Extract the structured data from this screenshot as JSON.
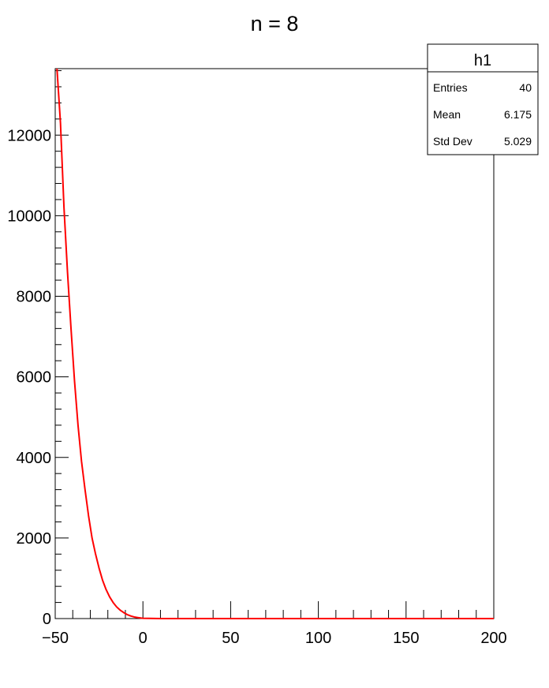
{
  "chart_data": {
    "type": "line",
    "title": "n = 8",
    "xlabel": "",
    "ylabel": "",
    "xlim": [
      -50,
      200
    ],
    "ylim": [
      0,
      13650
    ],
    "x_ticks": [
      -50,
      0,
      50,
      100,
      150,
      200
    ],
    "y_ticks": [
      0,
      2000,
      4000,
      6000,
      8000,
      10000,
      12000
    ],
    "series": [
      {
        "color": "#ff0000",
        "x": [
          -49,
          -47,
          -45,
          -43,
          -41,
          -39,
          -37,
          -35,
          -33,
          -31,
          -29,
          -27,
          -25,
          -23,
          -21,
          -19,
          -17,
          -15,
          -13,
          -11,
          -9,
          -7,
          -5,
          -3,
          -1,
          0,
          10,
          20,
          50,
          100,
          150,
          200
        ],
        "y": [
          13650,
          12300,
          10200,
          8600,
          7200,
          5900,
          4800,
          3900,
          3200,
          2550,
          2000,
          1600,
          1250,
          950,
          720,
          540,
          400,
          290,
          210,
          150,
          100,
          65,
          40,
          25,
          12,
          8,
          0,
          0,
          0,
          0,
          0,
          0
        ]
      }
    ],
    "grid": false,
    "stats_box": {
      "title": "h1",
      "rows": [
        {
          "label": "Entries",
          "value": "40"
        },
        {
          "label": "Mean",
          "value": "6.175"
        },
        {
          "label": "Std Dev",
          "value": "5.029"
        }
      ],
      "placement": "top-right"
    }
  }
}
